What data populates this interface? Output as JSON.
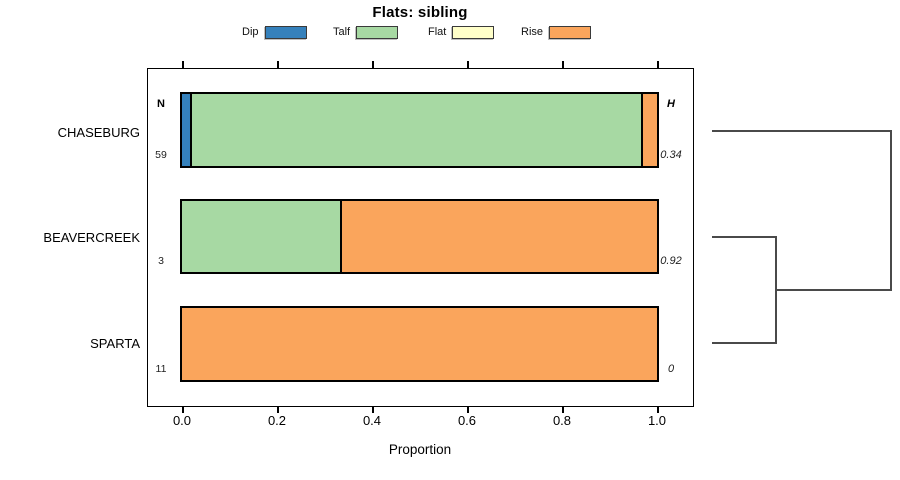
{
  "title": "Flats: sibling",
  "legend": {
    "items": [
      {
        "label": "Dip",
        "color": "#3581BC"
      },
      {
        "label": "Talf",
        "color": "#A7D9A3"
      },
      {
        "label": "Flat",
        "color": "#FFFFC9"
      },
      {
        "label": "Rise",
        "color": "#FAA55C"
      }
    ]
  },
  "headers": {
    "left": "N",
    "right": "H"
  },
  "axis": {
    "xlabel": "Proportion",
    "tick_labels": [
      "0.0",
      "0.2",
      "0.4",
      "0.6",
      "0.8",
      "1.0"
    ]
  },
  "chart_data": {
    "type": "bar",
    "orientation": "horizontal-stacked",
    "title": "Flats: sibling",
    "xlabel": "Proportion",
    "xlim": [
      0,
      1
    ],
    "x_ticks": [
      0.0,
      0.2,
      0.4,
      0.6,
      0.8,
      1.0
    ],
    "grid": false,
    "legend_position": "top",
    "categories": [
      "CHASEBURG",
      "BEAVERCREEK",
      "SPARTA"
    ],
    "series": [
      {
        "name": "Dip",
        "color": "#3581BC",
        "values": [
          0.017,
          0.0,
          0.0
        ]
      },
      {
        "name": "Talf",
        "color": "#A7D9A3",
        "values": [
          0.949,
          0.333,
          0.0
        ]
      },
      {
        "name": "Flat",
        "color": "#FFFFC9",
        "values": [
          0.0,
          0.0,
          0.0
        ]
      },
      {
        "name": "Rise",
        "color": "#FAA55C",
        "values": [
          0.034,
          0.667,
          1.0
        ]
      }
    ],
    "N": [
      59,
      3,
      11
    ],
    "H": [
      0.34,
      0.92,
      0
    ],
    "n_labels": [
      "59",
      "3",
      "11"
    ],
    "h_labels": [
      "0.34",
      "0.92",
      "0"
    ],
    "dendrogram": {
      "description": "hierarchical clustering shown right of plot: BEAVERCREEK and SPARTA merge first, that cluster then merges with CHASEBURG at a greater height",
      "merges": [
        [
          "BEAVERCREEK",
          "SPARTA"
        ],
        [
          "CHASEBURG",
          "(BEAVERCREEK,SPARTA)"
        ]
      ]
    }
  }
}
